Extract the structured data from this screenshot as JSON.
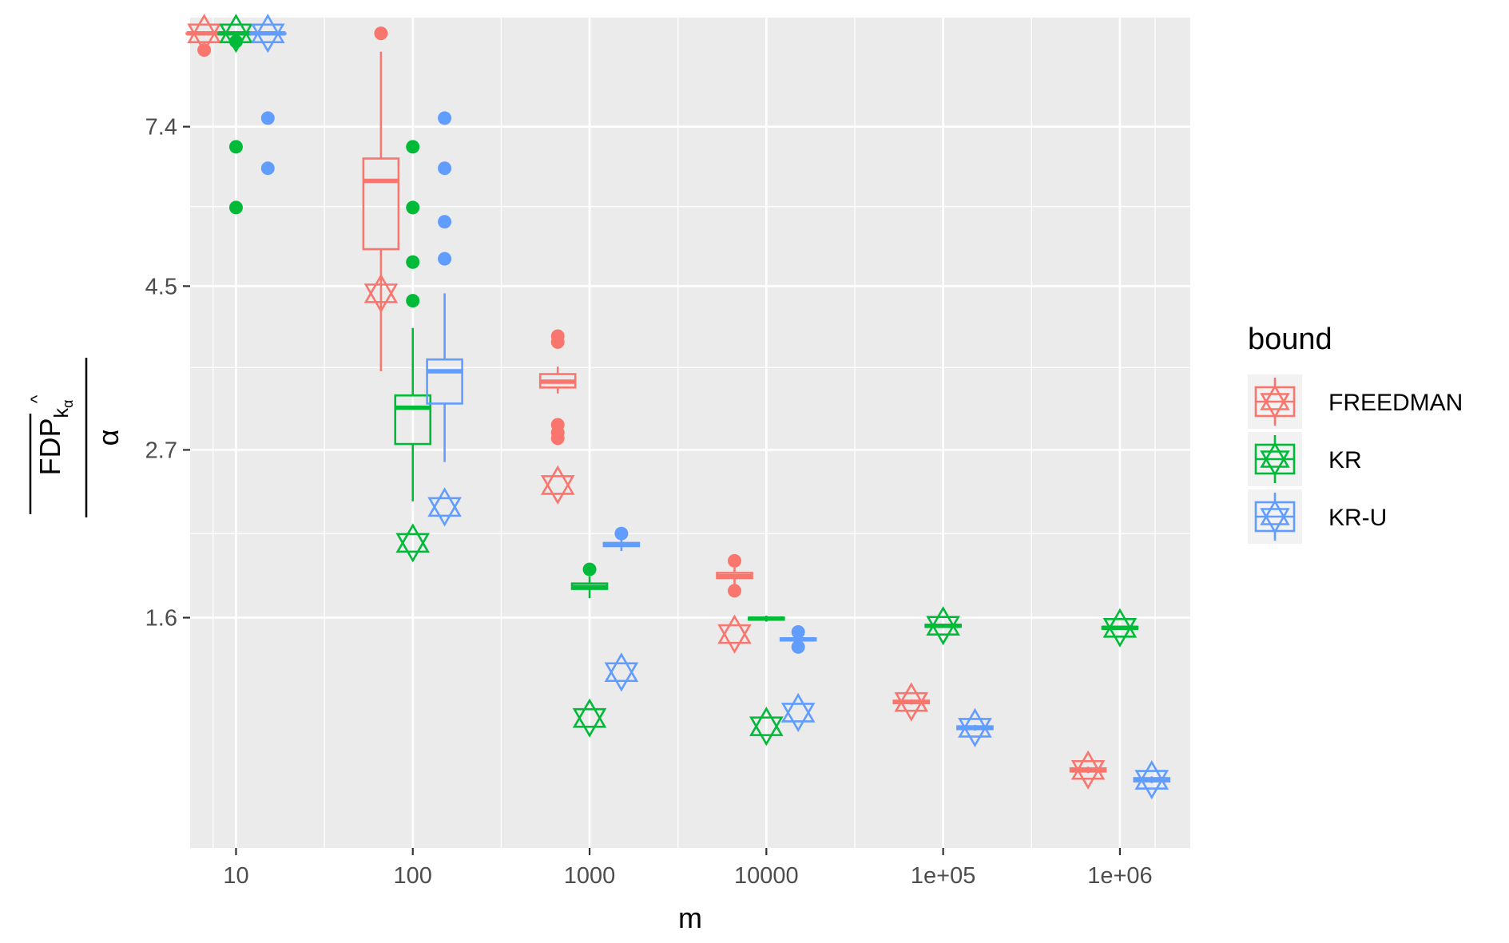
{
  "chart_data": {
    "type": "box",
    "xlabel": "m",
    "ylabel_main": "FDP",
    "ylabel_sub": "k",
    "ylabel_subsub": "α",
    "ylabel_hat": "^",
    "ylabel_den": "α",
    "x_scale": "log10",
    "x_ticks": [
      10,
      100,
      1000,
      10000,
      100000,
      1000000
    ],
    "x_tick_labels": [
      "10",
      "100",
      "1000",
      "10000",
      "1e+05",
      "1e+06"
    ],
    "y_scale": "log",
    "y_ticks": [
      1.6,
      2.7,
      4.5,
      7.4
    ],
    "y_tick_labels": [
      "1.6",
      "2.7",
      "4.5",
      "7.4"
    ],
    "y_minor_ticks": [
      2.08,
      3.49,
      5.77
    ],
    "xlim": [
      5.5,
      2500000
    ],
    "ylim": [
      0.78,
      10.4
    ],
    "grid": true,
    "legend": {
      "title": "bound",
      "position": "right",
      "entries": [
        {
          "name": "FREEDMAN",
          "color": "#F8766D"
        },
        {
          "name": "KR",
          "color": "#00BA38"
        },
        {
          "name": "KR-U",
          "color": "#619CFF"
        }
      ]
    },
    "groups": [
      {
        "series": "FREEDMAN",
        "m": 10,
        "box": {
          "lower_whisker": 9.9,
          "q1": 9.9,
          "median": 9.9,
          "q3": 9.9,
          "upper_whisker": 9.9
        },
        "outliers": [
          9.4
        ],
        "mean": 9.9
      },
      {
        "series": "KR",
        "m": 10,
        "box": {
          "lower_whisker": 9.9,
          "q1": 9.9,
          "median": 9.9,
          "q3": 9.9,
          "upper_whisker": 9.9
        },
        "outliers": [
          9.65,
          6.95,
          5.75
        ],
        "mean": 9.9
      },
      {
        "series": "KR-U",
        "m": 10,
        "box": {
          "lower_whisker": 9.9,
          "q1": 9.9,
          "median": 9.9,
          "q3": 9.9,
          "upper_whisker": 9.9
        },
        "outliers": [
          7.6,
          6.5
        ],
        "mean": 9.9
      },
      {
        "series": "FREEDMAN",
        "m": 100,
        "box": {
          "lower_whisker": 3.45,
          "q1": 5.05,
          "median": 6.25,
          "q3": 6.7,
          "upper_whisker": 9.35
        },
        "outliers": [
          9.9
        ],
        "mean": 4.4
      },
      {
        "series": "KR",
        "m": 100,
        "box": {
          "lower_whisker": 2.3,
          "q1": 2.75,
          "median": 3.08,
          "q3": 3.2,
          "upper_whisker": 3.95
        },
        "outliers": [
          6.95,
          5.75,
          4.85,
          4.3
        ],
        "mean": 2.02
      },
      {
        "series": "KR-U",
        "m": 100,
        "box": {
          "lower_whisker": 2.6,
          "q1": 3.12,
          "median": 3.45,
          "q3": 3.58,
          "upper_whisker": 4.4
        },
        "outliers": [
          7.6,
          6.5,
          5.5,
          4.9
        ],
        "mean": 2.26
      },
      {
        "series": "FREEDMAN",
        "m": 1000,
        "box": {
          "lower_whisker": 3.22,
          "q1": 3.28,
          "median": 3.34,
          "q3": 3.42,
          "upper_whisker": 3.5
        },
        "outliers": [
          3.85,
          3.78,
          2.92,
          2.85,
          2.8
        ],
        "mean": 2.42
      },
      {
        "series": "KR",
        "m": 1000,
        "box": {
          "lower_whisker": 1.7,
          "q1": 1.75,
          "median": 1.76,
          "q3": 1.78,
          "upper_whisker": 1.82
        },
        "outliers": [
          1.86
        ],
        "mean": 1.17
      },
      {
        "series": "KR-U",
        "m": 1000,
        "box": {
          "lower_whisker": 1.97,
          "q1": 2.0,
          "median": 2.01,
          "q3": 2.02,
          "upper_whisker": 2.05
        },
        "outliers": [
          2.08
        ],
        "mean": 1.35
      },
      {
        "series": "FREEDMAN",
        "m": 10000,
        "box": {
          "lower_whisker": 1.75,
          "q1": 1.81,
          "median": 1.82,
          "q3": 1.84,
          "upper_whisker": 1.87
        },
        "outliers": [
          1.91,
          1.74
        ],
        "mean": 1.52
      },
      {
        "series": "KR",
        "m": 10000,
        "box": {
          "lower_whisker": 1.58,
          "q1": 1.59,
          "median": 1.595,
          "q3": 1.6,
          "upper_whisker": 1.61
        },
        "outliers": [],
        "mean": 1.14
      },
      {
        "series": "KR-U",
        "m": 10000,
        "box": {
          "lower_whisker": 1.48,
          "q1": 1.49,
          "median": 1.495,
          "q3": 1.5,
          "upper_whisker": 1.51
        },
        "outliers": [
          1.53,
          1.46
        ],
        "mean": 1.19
      },
      {
        "series": "FREEDMAN",
        "m": 100000,
        "box": {
          "lower_whisker": 1.22,
          "q1": 1.225,
          "median": 1.23,
          "q3": 1.235,
          "upper_whisker": 1.24
        },
        "outliers": [],
        "mean": 1.23
      },
      {
        "series": "KR",
        "m": 100000,
        "box": {
          "lower_whisker": 1.55,
          "q1": 1.555,
          "median": 1.56,
          "q3": 1.565,
          "upper_whisker": 1.57
        },
        "outliers": [],
        "mean": 1.56
      },
      {
        "series": "KR-U",
        "m": 100000,
        "box": {
          "lower_whisker": 1.125,
          "q1": 1.13,
          "median": 1.135,
          "q3": 1.14,
          "upper_whisker": 1.145
        },
        "outliers": [],
        "mean": 1.135
      },
      {
        "series": "FREEDMAN",
        "m": 1000000,
        "box": {
          "lower_whisker": 0.985,
          "q1": 0.99,
          "median": 0.995,
          "q3": 1.0,
          "upper_whisker": 1.005
        },
        "outliers": [],
        "mean": 0.995
      },
      {
        "series": "KR",
        "m": 1000000,
        "box": {
          "lower_whisker": 1.54,
          "q1": 1.545,
          "median": 1.55,
          "q3": 1.555,
          "upper_whisker": 1.56
        },
        "outliers": [],
        "mean": 1.55
      },
      {
        "series": "KR-U",
        "m": 1000000,
        "box": {
          "lower_whisker": 0.955,
          "q1": 0.96,
          "median": 0.965,
          "q3": 0.97,
          "upper_whisker": 0.975
        },
        "outliers": [],
        "mean": 0.965
      }
    ]
  }
}
